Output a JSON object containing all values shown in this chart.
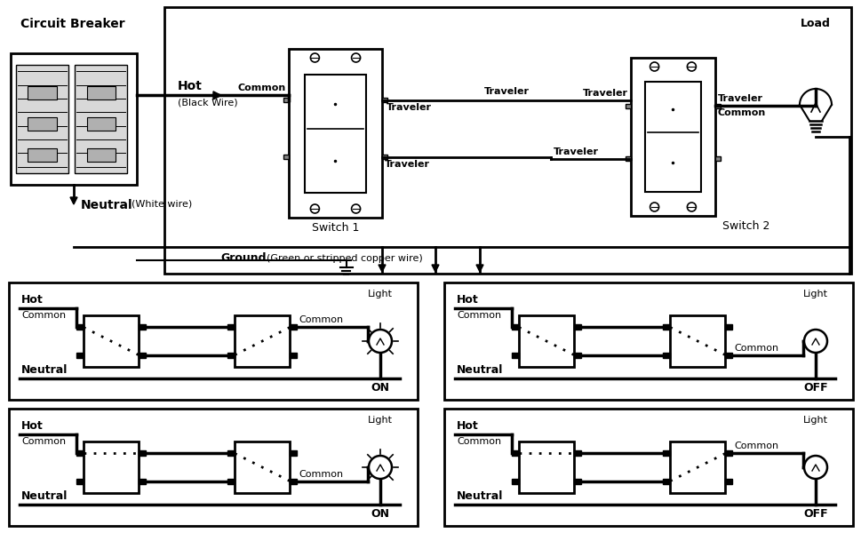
{
  "bg_color": "#ffffff",
  "fig_width": 9.7,
  "fig_height": 6.0,
  "dpi": 100,
  "labels": {
    "circuit_breaker": "Circuit Breaker",
    "hot": "Hot",
    "hot_sub": "(Black Wire)",
    "common": "Common",
    "traveler": "Traveler",
    "switch1": "Switch 1",
    "switch2": "Switch 2",
    "ground": "Ground",
    "ground_sub": "(Green or stripped copper wire)",
    "neutral": "Neutral",
    "neutral_sub": "(White wire)",
    "load": "Load"
  }
}
